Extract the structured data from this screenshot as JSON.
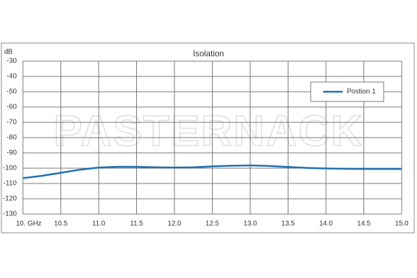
{
  "chart_data": {
    "type": "line",
    "title": "Isolation",
    "y_label": "dB",
    "watermark": "PASTERNACK",
    "x": [
      10,
      10.25,
      10.5,
      10.75,
      11,
      11.25,
      11.5,
      11.75,
      12,
      12.25,
      12.5,
      12.75,
      13,
      13.25,
      13.5,
      13.75,
      14,
      14.25,
      14.5,
      14.75,
      15
    ],
    "series": [
      {
        "name": "Postion 1",
        "color": "#1f6fb2",
        "values": [
          -106.5,
          -105,
          -103,
          -101,
          -99.6,
          -99.1,
          -99.1,
          -99.4,
          -99.6,
          -99.4,
          -98.8,
          -98.4,
          -98.2,
          -98.5,
          -99.2,
          -99.8,
          -100.2,
          -100.4,
          -100.5,
          -100.5,
          -100.5
        ]
      }
    ],
    "xlim": [
      10,
      15
    ],
    "ylim": [
      -130,
      -30
    ],
    "xticks": [
      {
        "value": 10,
        "label": "10.  GHz"
      },
      {
        "value": 10.5,
        "label": "10.5"
      },
      {
        "value": 11,
        "label": "11.0"
      },
      {
        "value": 11.5,
        "label": "11.5"
      },
      {
        "value": 12,
        "label": "12.0"
      },
      {
        "value": 12.5,
        "label": "12.5"
      },
      {
        "value": 13,
        "label": "13.0"
      },
      {
        "value": 13.5,
        "label": "13.5"
      },
      {
        "value": 14,
        "label": "14.0"
      },
      {
        "value": 14.5,
        "label": "14.5"
      },
      {
        "value": 15,
        "label": "15.0"
      }
    ],
    "yticks": [
      -30,
      -40,
      -50,
      -60,
      -70,
      -80,
      -90,
      -100,
      -110,
      -120,
      -130
    ],
    "grid": true,
    "legend": "upper right"
  }
}
